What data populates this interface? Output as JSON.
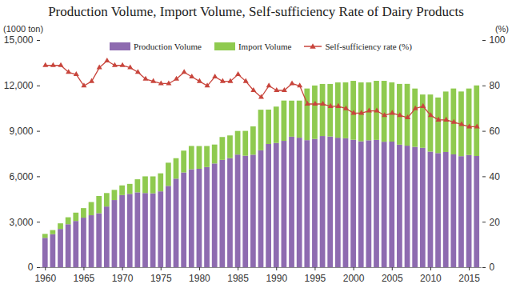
{
  "chart_data": {
    "type": "bar",
    "title": "Production Volume, Import Volume, Self-sufficiency Rate of Dairy Products",
    "stacked": true,
    "grid": false,
    "legend": "top",
    "y_label": "(1000 ton)",
    "y2_label": "(%)",
    "categories": [
      1960,
      1961,
      1962,
      1963,
      1964,
      1965,
      1966,
      1967,
      1968,
      1969,
      1970,
      1971,
      1972,
      1973,
      1974,
      1975,
      1976,
      1977,
      1978,
      1979,
      1980,
      1981,
      1982,
      1983,
      1984,
      1985,
      1986,
      1987,
      1988,
      1989,
      1990,
      1991,
      1992,
      1993,
      1994,
      1995,
      1996,
      1997,
      1998,
      1999,
      2000,
      2001,
      2002,
      2003,
      2004,
      2005,
      2006,
      2007,
      2008,
      2009,
      2010,
      2011,
      2012,
      2013,
      2014,
      2015,
      2016
    ],
    "xticks": [
      1960,
      1965,
      1970,
      1975,
      1980,
      1985,
      1990,
      1995,
      2000,
      2005,
      2010,
      2015
    ],
    "ylim": [
      0,
      15000
    ],
    "yticks": [
      0,
      {
        "value": 3000,
        "label": "3,000"
      },
      {
        "value": 6000,
        "label": "6,000"
      },
      {
        "value": 9000,
        "label": "9,000"
      },
      {
        "value": 12000,
        "label": "12,000"
      },
      {
        "value": 15000,
        "label": "15,000"
      }
    ],
    "y2lim": [
      0,
      100
    ],
    "y2ticks": [
      0,
      20,
      40,
      60,
      80,
      100
    ],
    "series": [
      {
        "name": "Production Volume",
        "color": "#8e6bb0",
        "values": [
          1939,
          2180,
          2526,
          2837,
          3053,
          3271,
          3431,
          3563,
          4006,
          4434,
          4761,
          4841,
          4944,
          4898,
          4876,
          5008,
          5369,
          5846,
          6256,
          6464,
          6498,
          6612,
          6848,
          7086,
          7200,
          7436,
          7360,
          7428,
          7717,
          8134,
          8203,
          8343,
          8617,
          8550,
          8388,
          8467,
          8659,
          8629,
          8549,
          8513,
          8414,
          8312,
          8380,
          8405,
          8284,
          8293,
          8091,
          8024,
          7946,
          7881,
          7631,
          7534,
          7608,
          7448,
          7331,
          7407,
          7342
        ]
      },
      {
        "name": "Import Volume",
        "color": "#8fca4f",
        "values": [
          260,
          270,
          370,
          460,
          550,
          630,
          870,
          1140,
          890,
          670,
          640,
          660,
          860,
          1100,
          1120,
          1190,
          1530,
          1350,
          1440,
          1540,
          1500,
          1390,
          1250,
          1510,
          1500,
          1560,
          1640,
          1870,
          2680,
          2270,
          2400,
          2660,
          2380,
          2450,
          3410,
          3530,
          3440,
          3470,
          3650,
          3690,
          3890,
          3890,
          3820,
          3900,
          4020,
          3910,
          4010,
          4080,
          3850,
          3520,
          3770,
          3670,
          3990,
          4350,
          4270,
          4390,
          4660
        ]
      },
      {
        "name": "Self-sufficiency rate (%)",
        "type": "line",
        "axis": "y2",
        "color": "#c8453c",
        "marker": "triangle",
        "values": [
          89,
          89,
          89,
          86,
          85,
          80,
          82,
          88,
          91,
          89,
          89,
          88,
          86,
          83,
          82,
          81,
          81,
          83,
          86,
          84,
          82,
          80,
          84,
          82,
          82,
          85,
          82,
          78,
          75,
          80,
          78,
          78,
          81,
          80,
          72,
          72,
          72,
          71,
          71,
          70,
          68,
          68,
          69,
          69,
          67,
          68,
          67,
          66,
          70,
          71,
          67,
          65,
          65,
          64,
          63,
          62,
          62
        ]
      }
    ]
  }
}
